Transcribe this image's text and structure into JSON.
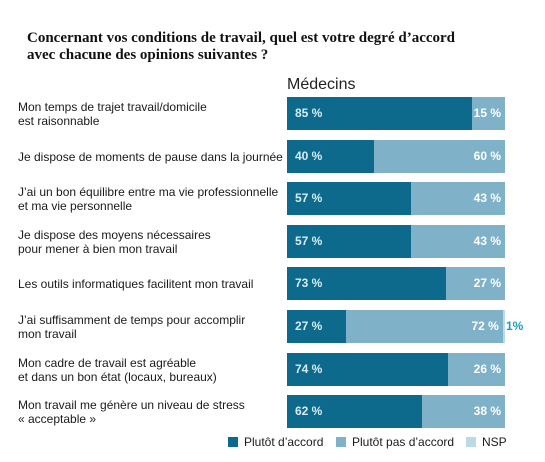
{
  "title_line1": "Concernant vos conditions de travail, quel est votre degré d’accord",
  "title_line2": "avec chacune des opinions suivantes ?",
  "chart_data": {
    "type": "bar",
    "group_label": "Médecins",
    "categories": [
      "Mon temps de trajet travail/domicile\nest raisonnable",
      "Je dispose de moments de pause dans la journée",
      "J’ai un bon équilibre entre ma vie professionnelle\net ma vie personnelle",
      "Je dispose des moyens nécessaires\npour mener à bien mon travail",
      "Les outils informatiques facilitent mon travail",
      "J’ai suffisamment de temps pour accomplir\nmon travail",
      "Mon cadre de travail est agréable\net dans un bon état (locaux, bureaux)",
      "Mon travail me génère un niveau de stress\n« acceptable »"
    ],
    "series": [
      {
        "name": "Plutôt d’accord",
        "color": "#0e6a8c",
        "label_color": "#d6ecf5",
        "values": [
          85,
          40,
          57,
          57,
          73,
          27,
          74,
          62
        ],
        "labels": [
          "85 %",
          "40 %",
          "57 %",
          "57 %",
          "73 %",
          "27 %",
          "74 %",
          "62 %"
        ]
      },
      {
        "name": "Plutôt pas d’accord",
        "color": "#7fb2c8",
        "label_color": "#ffffff",
        "values": [
          15,
          60,
          43,
          43,
          27,
          72,
          26,
          38
        ],
        "labels": [
          "15 %",
          "60 %",
          "43 %",
          "43 %",
          "27 %",
          "72 %",
          "26 %",
          "38 %"
        ]
      },
      {
        "name": "NSP",
        "color": "#bcd9e6",
        "label_color": "#1e9cc8",
        "values": [
          0,
          0,
          0,
          0,
          0,
          1,
          0,
          0
        ],
        "labels": [
          "",
          "",
          "",
          "",
          "",
          "1%",
          "",
          ""
        ]
      }
    ]
  }
}
